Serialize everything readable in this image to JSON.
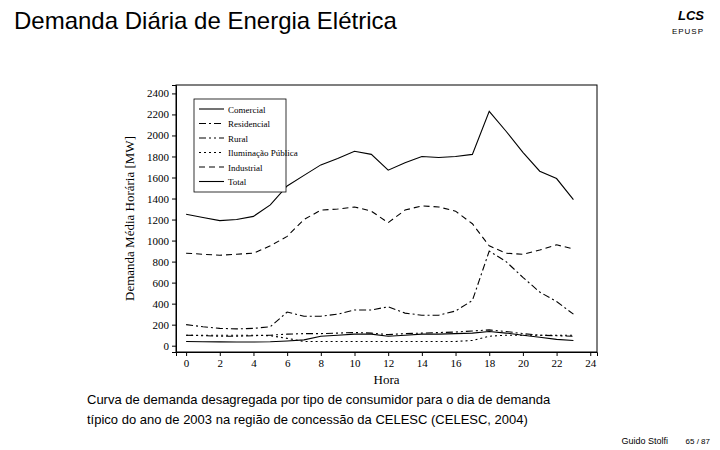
{
  "slide": {
    "title": "Demanda Diária de Energia Elétrica",
    "logo": "LCS",
    "logo_sub": "EPUSP",
    "caption": [
      "Curva de demanda desagregada por tipo de consumidor para o dia de demanda",
      "típico do ano de 2003 na região de concessão da CELESC (CELESC, 2004)"
    ],
    "author": "Guido Stolfi",
    "page": "65 / 87"
  },
  "chart_data": {
    "type": "line",
    "x_label": "Hora",
    "y_label": "Demanda Média Horária [MW]",
    "x": [
      0,
      1,
      2,
      3,
      4,
      5,
      6,
      7,
      8,
      9,
      10,
      11,
      12,
      13,
      14,
      15,
      16,
      17,
      18,
      19,
      20,
      21,
      22,
      23
    ],
    "xlim": [
      -0.6,
      24.4
    ],
    "xticks": [
      0,
      2,
      4,
      6,
      8,
      10,
      12,
      14,
      16,
      18,
      20,
      22,
      24
    ],
    "ylim": [
      -60,
      2480
    ],
    "yticks": [
      0,
      200,
      400,
      600,
      800,
      1000,
      1200,
      1400,
      1600,
      1800,
      2000,
      2200,
      2400
    ],
    "grid": false,
    "legend": "upper left",
    "series": [
      {
        "name": "Comercial",
        "color": "#000000",
        "line_style": "solid",
        "values": [
          40,
          38,
          36,
          35,
          35,
          38,
          45,
          55,
          90,
          100,
          110,
          110,
          90,
          100,
          110,
          110,
          115,
          120,
          135,
          120,
          100,
          80,
          60,
          50
        ]
      },
      {
        "name": "Residencial",
        "color": "#000000",
        "line_style": "dashdot",
        "values": [
          200,
          180,
          165,
          160,
          165,
          180,
          320,
          280,
          280,
          300,
          340,
          340,
          370,
          310,
          290,
          290,
          330,
          430,
          900,
          800,
          650,
          510,
          420,
          300
        ]
      },
      {
        "name": "Rural",
        "color": "#000000",
        "line_style": "dashdotdot",
        "values": [
          100,
          95,
          90,
          90,
          95,
          100,
          110,
          115,
          115,
          120,
          125,
          120,
          105,
          115,
          120,
          125,
          130,
          140,
          150,
          135,
          115,
          100,
          95,
          90
        ]
      },
      {
        "name": "Iluminação Pública",
        "color": "#000000",
        "line_style": "dotted",
        "values": [
          100,
          100,
          100,
          100,
          100,
          95,
          70,
          40,
          40,
          40,
          40,
          40,
          40,
          40,
          40,
          40,
          40,
          50,
          90,
          100,
          100,
          100,
          100,
          100
        ]
      },
      {
        "name": "Industrial",
        "color": "#000000",
        "line_style": "dashed",
        "values": [
          880,
          870,
          860,
          870,
          880,
          950,
          1040,
          1200,
          1290,
          1300,
          1320,
          1280,
          1170,
          1290,
          1330,
          1320,
          1280,
          1160,
          950,
          880,
          870,
          910,
          960,
          920
        ]
      },
      {
        "name": "Total",
        "color": "#000000",
        "line_style": "solid",
        "values": [
          1250,
          1220,
          1190,
          1200,
          1230,
          1340,
          1520,
          1620,
          1720,
          1780,
          1850,
          1820,
          1670,
          1740,
          1800,
          1790,
          1800,
          1820,
          2230,
          2040,
          1840,
          1660,
          1590,
          1390
        ]
      }
    ]
  }
}
